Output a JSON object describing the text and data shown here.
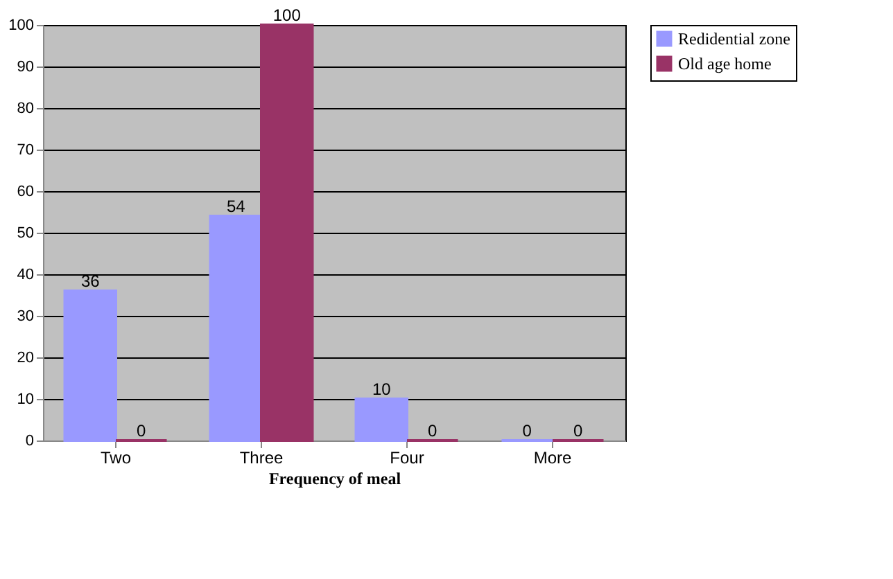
{
  "chart_data": {
    "type": "bar",
    "xlabel": "Frequency of meal",
    "categories": [
      "Two",
      "Three",
      "Four",
      "More"
    ],
    "series": [
      {
        "name": "Redidential zone",
        "color": "#9999ff",
        "values": [
          36,
          54,
          10,
          0
        ]
      },
      {
        "name": "Old age home",
        "color": "#993366",
        "values": [
          0,
          100,
          0,
          0
        ]
      }
    ],
    "ylim": [
      0,
      100
    ],
    "yticks": [
      0,
      10,
      20,
      30,
      40,
      50,
      60,
      70,
      80,
      90,
      100
    ],
    "grid": "y",
    "legend": "top right",
    "data_labels": true
  }
}
